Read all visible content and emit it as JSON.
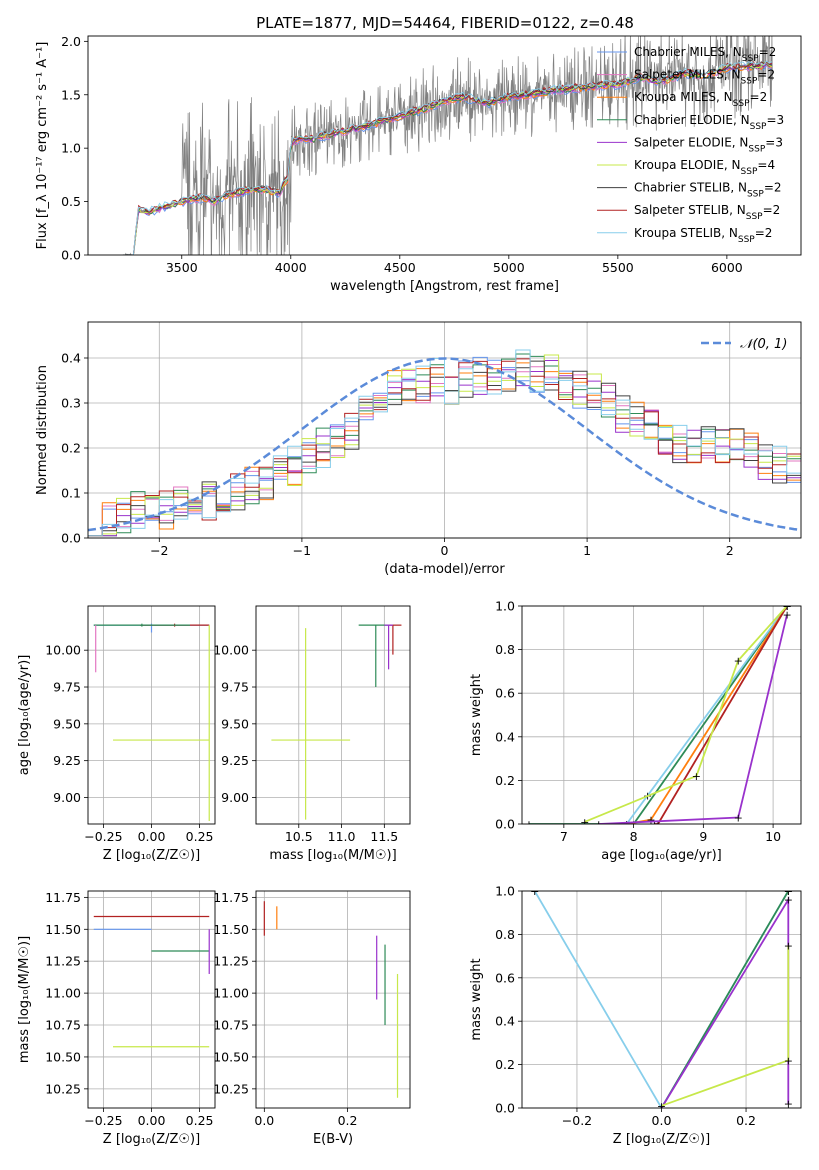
{
  "figure_title": "PLATE=1877, MJD=54464, FIBERID=0122, z=0.48",
  "colors": {
    "data": "#808080",
    "Chabrier MILES": "#6495ed",
    "Salpeter MILES": "#e377c2",
    "Kroupa MILES": "#ff7f0e",
    "Chabrier ELODIE": "#2e8b57",
    "Salpeter ELODIE": "#9932cc",
    "Kroupa ELODIE": "#c7e84a",
    "Chabrier STELIB": "#404040",
    "Salpeter STELIB": "#b22222",
    "Kroupa STELIB": "#87ceeb",
    "gauss": "#5b8bd9"
  },
  "chart_data": [
    {
      "id": "spectrum",
      "type": "line",
      "xlabel": "wavelength [Angstrom, rest frame]",
      "ylabel": "Flux [f_λ 10⁻¹⁷ erg cm⁻² s⁻¹ A⁻¹]",
      "xlim": [
        3070,
        6340
      ],
      "ylim": [
        0,
        2.05
      ],
      "xticks": [
        3500,
        4000,
        4500,
        5000,
        5500,
        6000
      ],
      "yticks": [
        0.0,
        0.5,
        1.0,
        1.5,
        2.0
      ],
      "grid": false,
      "legend_position": "top-right",
      "legend": [
        {
          "name": "Chabrier MILES",
          "nssp": "2"
        },
        {
          "name": "Salpeter MILES",
          "nssp": "2"
        },
        {
          "name": "Kroupa MILES",
          "nssp": "2"
        },
        {
          "name": "Chabrier ELODIE",
          "nssp": "3"
        },
        {
          "name": "Salpeter ELODIE",
          "nssp": "3"
        },
        {
          "name": "Kroupa ELODIE",
          "nssp": "4"
        },
        {
          "name": "Chabrier STELIB",
          "nssp": "2"
        },
        {
          "name": "Salpeter STELIB",
          "nssp": "2"
        },
        {
          "name": "Kroupa STELIB",
          "nssp": "2"
        }
      ],
      "model_curve": {
        "x": [
          3230,
          3280,
          3300,
          3350,
          3400,
          3450,
          3500,
          3550,
          3600,
          3650,
          3700,
          3750,
          3800,
          3850,
          3900,
          3950,
          3970,
          3990,
          4000,
          4050,
          4100,
          4150,
          4200,
          4300,
          4400,
          4500,
          4600,
          4700,
          4800,
          4860,
          4900,
          5000,
          5100,
          5200,
          5300,
          5400,
          5500,
          5600,
          5700,
          5800,
          5900,
          6000,
          6100,
          6200
        ],
        "y": [
          0.0,
          0.0,
          0.42,
          0.4,
          0.44,
          0.47,
          0.5,
          0.52,
          0.54,
          0.5,
          0.56,
          0.58,
          0.6,
          0.62,
          0.6,
          0.58,
          0.68,
          0.72,
          1.05,
          1.1,
          1.08,
          1.12,
          1.14,
          1.18,
          1.24,
          1.3,
          1.36,
          1.44,
          1.48,
          1.43,
          1.42,
          1.48,
          1.5,
          1.54,
          1.56,
          1.58,
          1.6,
          1.66,
          1.62,
          1.7,
          1.68,
          1.75,
          1.76,
          1.78
        ]
      }
    },
    {
      "id": "residuals",
      "type": "step",
      "xlabel": "(data-model)/error",
      "ylabel": "Normed distribution",
      "xlim": [
        -2.5,
        2.5
      ],
      "ylim": [
        0,
        0.48
      ],
      "xticks": [
        -2,
        -1,
        0,
        1,
        2
      ],
      "yticks": [
        0.0,
        0.1,
        0.2,
        0.3,
        0.4
      ],
      "grid": true,
      "legend_position": "top-right",
      "legend": [
        {
          "name": "𝒩(0, 1)"
        }
      ],
      "bin_edges_start": -2.5,
      "bin_width": 0.1,
      "histogram_envelope": [
        0.03,
        0.04,
        0.05,
        0.06,
        0.05,
        0.06,
        0.07,
        0.06,
        0.08,
        0.09,
        0.1,
        0.12,
        0.13,
        0.15,
        0.16,
        0.18,
        0.2,
        0.22,
        0.24,
        0.27,
        0.3,
        0.33,
        0.35,
        0.34,
        0.36,
        0.33,
        0.35,
        0.36,
        0.35,
        0.37,
        0.38,
        0.36,
        0.37,
        0.35,
        0.33,
        0.32,
        0.3,
        0.28,
        0.26,
        0.24,
        0.22,
        0.21,
        0.2,
        0.22,
        0.2,
        0.21,
        0.19,
        0.17,
        0.16,
        0.15
      ]
    },
    {
      "id": "age-vs-Z",
      "type": "errorbar",
      "xlabel": "Z [log₁₀(Z/Z☉)]",
      "ylabel": "age  [log₁₀(age/yr)]",
      "xlim": [
        -0.33,
        0.33
      ],
      "ylim": [
        8.82,
        10.3
      ],
      "xticks": [
        -0.25,
        0.0,
        0.25
      ],
      "yticks": [
        9.0,
        9.25,
        9.5,
        9.75,
        10.0
      ],
      "grid": true,
      "points": [
        {
          "series": "Chabrier MILES",
          "x": 0.0,
          "x_err": [
            0.3,
            0.3
          ],
          "y": 10.17,
          "y_err": [
            0.05,
            0.01
          ]
        },
        {
          "series": "Salpeter STELIB",
          "x": 0.12,
          "x_err": [
            0.18,
            0.18
          ],
          "y": 10.17,
          "y_err": [
            0.01,
            0.01
          ]
        },
        {
          "series": "Chabrier ELODIE",
          "x": -0.05,
          "x_err": [
            0.25,
            0.25
          ],
          "y": 10.17,
          "y_err": [
            0.01,
            0.01
          ]
        },
        {
          "series": "Kroupa ELODIE",
          "x": 0.0,
          "x_err": [
            0.2,
            0.3
          ],
          "y": 9.39,
          "y_err": [
            0.0,
            0.0
          ]
        },
        {
          "series": "Kroupa ELODIE",
          "x": 0.3,
          "x_err": [
            0.0,
            0.0
          ],
          "y": 9.39,
          "y_err": [
            0.55,
            0.78
          ]
        },
        {
          "series": "Salpeter MILES",
          "x": -0.29,
          "x_err": [
            0.0,
            0.0
          ],
          "y": 10.17,
          "y_err": [
            0.32,
            0.0
          ]
        }
      ]
    },
    {
      "id": "age-vs-mass",
      "type": "errorbar",
      "xlabel": "mass [log₁₀(M/M☉)]",
      "ylabel": "",
      "xlim": [
        10.0,
        11.8
      ],
      "ylim": [
        8.82,
        10.3
      ],
      "xticks": [
        10.5,
        11.0,
        11.5
      ],
      "yticks": [
        9.0,
        9.25,
        9.5,
        9.75,
        10.0
      ],
      "grid": true,
      "points": [
        {
          "series": "Kroupa ELODIE",
          "x": 10.58,
          "x_err": [
            0.4,
            0.52
          ],
          "y": 9.39,
          "y_err": [
            0.54,
            0.76
          ]
        },
        {
          "series": "Chabrier ELODIE",
          "x": 11.4,
          "x_err": [
            0.2,
            0.15
          ],
          "y": 10.17,
          "y_err": [
            0.42,
            0.0
          ]
        },
        {
          "series": "Salpeter STELIB",
          "x": 11.6,
          "x_err": [
            0.05,
            0.1
          ],
          "y": 10.17,
          "y_err": [
            0.2,
            0.0
          ]
        },
        {
          "series": "Salpeter ELODIE",
          "x": 11.55,
          "x_err": [
            0.05,
            0.05
          ],
          "y": 10.17,
          "y_err": [
            0.3,
            0.0
          ]
        }
      ]
    },
    {
      "id": "mass-weight-vs-age",
      "type": "line",
      "xlabel": "age  [log₁₀(age/yr)]",
      "ylabel": "mass weight",
      "xlim": [
        6.4,
        10.4
      ],
      "ylim": [
        0,
        1.0
      ],
      "xticks": [
        7,
        8,
        9,
        10
      ],
      "yticks": [
        0.0,
        0.2,
        0.4,
        0.6,
        0.8,
        1.0
      ],
      "grid": true,
      "series": [
        {
          "color_key": "Chabrier ELODIE",
          "x": [
            6.5,
            8.0,
            10.2
          ],
          "y": [
            0.0,
            0.0,
            1.0
          ]
        },
        {
          "color_key": "Kroupa STELIB",
          "x": [
            7.9,
            8.2,
            10.2
          ],
          "y": [
            0.0,
            0.13,
            1.0
          ]
        },
        {
          "color_key": "Kroupa MILES",
          "x": [
            7.9,
            8.25,
            10.2
          ],
          "y": [
            0.0,
            0.02,
            1.0
          ]
        },
        {
          "color_key": "Salpeter STELIB",
          "x": [
            8.3,
            8.35,
            10.2
          ],
          "y": [
            0.0,
            0.0,
            1.0
          ]
        },
        {
          "color_key": "Salpeter ELODIE",
          "x": [
            7.5,
            9.5,
            10.2
          ],
          "y": [
            0.0,
            0.03,
            0.96
          ]
        },
        {
          "color_key": "Kroupa ELODIE",
          "x": [
            7.3,
            8.9,
            9.5,
            10.2
          ],
          "y": [
            0.01,
            0.22,
            0.75,
            1.0
          ]
        }
      ]
    },
    {
      "id": "mass-vs-Z",
      "type": "errorbar",
      "xlabel": "Z [log₁₀(Z/Z☉)]",
      "ylabel": "mass [log₁₀(M/M☉)]",
      "xlim": [
        -0.33,
        0.33
      ],
      "ylim": [
        10.1,
        11.8
      ],
      "xticks": [
        -0.25,
        0.0,
        0.25
      ],
      "yticks": [
        10.25,
        10.5,
        10.75,
        11.0,
        11.25,
        11.5,
        11.75
      ],
      "grid": true,
      "points": [
        {
          "series": "Salpeter STELIB",
          "x": 0.0,
          "x_err": [
            0.3,
            0.3
          ],
          "y": 11.6,
          "y_err": [
            0.0,
            0.0
          ]
        },
        {
          "series": "Chabrier MILES",
          "x": -0.15,
          "x_err": [
            0.15,
            0.15
          ],
          "y": 11.5,
          "y_err": [
            0.0,
            0.0
          ]
        },
        {
          "series": "Chabrier ELODIE",
          "x": 0.15,
          "x_err": [
            0.15,
            0.15
          ],
          "y": 11.33,
          "y_err": [
            0.0,
            0.0
          ]
        },
        {
          "series": "Kroupa ELODIE",
          "x": 0.05,
          "x_err": [
            0.25,
            0.25
          ],
          "y": 10.58,
          "y_err": [
            0.0,
            0.0
          ]
        },
        {
          "series": "Salpeter ELODIE",
          "x": 0.3,
          "x_err": [
            0.0,
            0.0
          ],
          "y": 11.4,
          "y_err": [
            0.25,
            0.1
          ]
        }
      ]
    },
    {
      "id": "mass-vs-EBV",
      "type": "errorbar",
      "xlabel": "E(B-V)",
      "ylabel": "",
      "xlim": [
        -0.02,
        0.35
      ],
      "ylim": [
        10.1,
        11.8
      ],
      "xticks": [
        0.0,
        0.2
      ],
      "yticks": [
        10.25,
        10.5,
        10.75,
        11.0,
        11.25,
        11.5,
        11.75
      ],
      "grid": true,
      "points": [
        {
          "series": "Salpeter STELIB",
          "x": 0.0,
          "x_err": [
            0.0,
            0.0
          ],
          "y": 11.6,
          "y_err": [
            0.15,
            0.12
          ]
        },
        {
          "series": "Kroupa MILES",
          "x": 0.03,
          "x_err": [
            0.0,
            0.0
          ],
          "y": 11.6,
          "y_err": [
            0.1,
            0.08
          ]
        },
        {
          "series": "Salpeter ELODIE",
          "x": 0.27,
          "x_err": [
            0.0,
            0.0
          ],
          "y": 11.2,
          "y_err": [
            0.25,
            0.25
          ]
        },
        {
          "series": "Chabrier ELODIE",
          "x": 0.29,
          "x_err": [
            0.0,
            0.0
          ],
          "y": 11.1,
          "y_err": [
            0.35,
            0.28
          ]
        },
        {
          "series": "Kroupa ELODIE",
          "x": 0.32,
          "x_err": [
            0.0,
            0.0
          ],
          "y": 10.6,
          "y_err": [
            0.42,
            0.55
          ]
        }
      ]
    },
    {
      "id": "mass-weight-vs-Z",
      "type": "line",
      "xlabel": "Z [log₁₀(Z/Z☉)]",
      "ylabel": "mass weight",
      "xlim": [
        -0.33,
        0.33
      ],
      "ylim": [
        0,
        1.0
      ],
      "xticks": [
        -0.2,
        0.0,
        0.2
      ],
      "yticks": [
        0.0,
        0.2,
        0.4,
        0.6,
        0.8,
        1.0
      ],
      "grid": true,
      "series": [
        {
          "color_key": "Kroupa STELIB",
          "x": [
            -0.3,
            0.0,
            0.3
          ],
          "y": [
            1.0,
            0.0,
            1.0
          ]
        },
        {
          "color_key": "Chabrier ELODIE",
          "x": [
            0.0,
            0.3
          ],
          "y": [
            0.0,
            1.0
          ]
        },
        {
          "color_key": "Salpeter ELODIE",
          "x": [
            0.0,
            0.3,
            0.3
          ],
          "y": [
            0.0,
            0.96,
            0.02
          ]
        },
        {
          "color_key": "Kroupa ELODIE",
          "x": [
            0.0,
            0.3,
            0.3
          ],
          "y": [
            0.01,
            0.22,
            0.75
          ]
        }
      ]
    }
  ]
}
